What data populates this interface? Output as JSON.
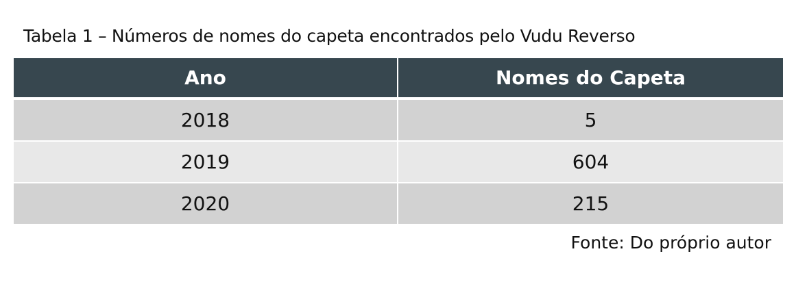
{
  "title": "Tabela 1 – Números de nomes do capeta encontrados pelo Vudu Reverso",
  "table": {
    "headers": [
      "Ano",
      "Nomes do Capeta"
    ],
    "rows": [
      [
        "2018",
        "5"
      ],
      [
        "2019",
        "604"
      ],
      [
        "2020",
        "215"
      ]
    ]
  },
  "source": "Fonte: Do próprio autor",
  "colors": {
    "header_bg": "#37474f",
    "row_dark": "#d2d2d2",
    "row_light": "#e8e8e8"
  }
}
